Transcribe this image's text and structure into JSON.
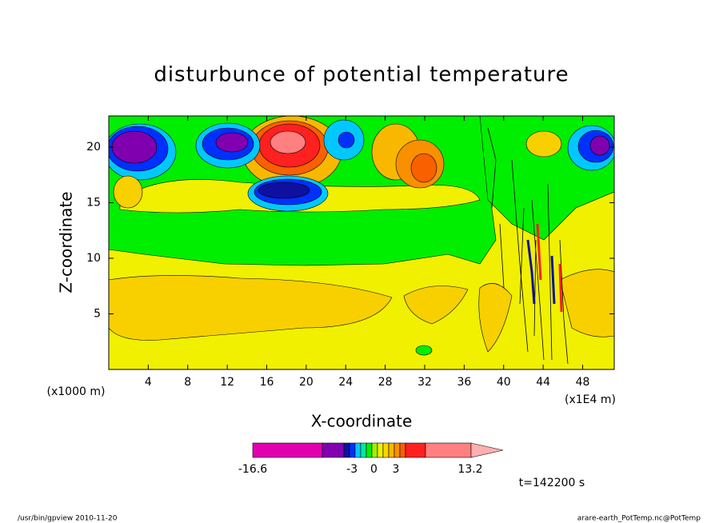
{
  "chart_data": {
    "type": "contour",
    "title": "disturbunce of potential temperature",
    "x_label": "X-coordinate",
    "y_label": "Z-coordinate",
    "x_unit_label": "(x1000 m)",
    "x_scale_label": "(x1E4 m)",
    "xlim": [
      0,
      51.2
    ],
    "xticks": [
      4,
      8,
      12,
      16,
      20,
      24,
      28,
      32,
      36,
      40,
      44,
      48
    ],
    "ylim": [
      0,
      22.8
    ],
    "yticks": [
      5,
      10,
      15,
      20
    ],
    "colorbar": {
      "lim": [
        -16.6,
        13.2
      ],
      "ticks": [
        -16.6,
        -3,
        0,
        3,
        13.2
      ],
      "colors": [
        "#e000b0",
        "#8000b0",
        "#1010a0",
        "#0030ff",
        "#00c8ff",
        "#00e8a0",
        "#00ee00",
        "#a0f000",
        "#f0f000",
        "#f8d800",
        "#f8b800",
        "#f89000",
        "#f86000",
        "#ff2020",
        "#ff8080",
        "#ffb0b0"
      ]
    },
    "time_label": "t=142200 s"
  },
  "footer": {
    "left": "/usr/bin/gpview  2010-11-20",
    "right": "arare-earth_PotTemp.nc@PotTemp"
  }
}
